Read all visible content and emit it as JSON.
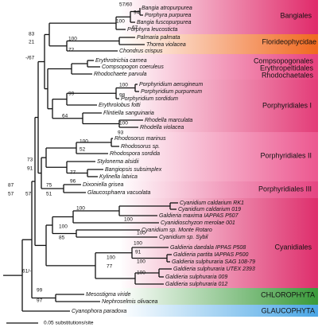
{
  "taxa": [
    "Bangia atropurpurea",
    "Porphyra purpurea",
    "Bangia fuscopurpurea",
    "Porphyra leucosticta",
    "Palmaria palmata",
    "Thorea violacea",
    "Chondrus crispus",
    "Erythrotrichia carnea",
    "Compsopogon coeruleus",
    "Rhodochaete parvula",
    "Porphyridium aerugineum",
    "Porphyridium purpureum",
    "Porphyridium sordidum",
    "Erythrolobus fotti",
    "Flintiella sanguinaria",
    "Rhodella marculata",
    "Rhodella violacea",
    "Rhodosorus marinus",
    "Rhodosorus sp.",
    "Rhodospora sordida",
    "Stylonema alsidii",
    "Bangiopsis subsimplex",
    "Kylinella latvica",
    "Dixoniella grisea",
    "Glaucosphaera vacuolata",
    "Cyanidium caldarium RK1",
    "Cyanidium caldarium 019",
    "Galdieria maxima IAPPAS P507",
    "Cyanidioschyzon merolae 001",
    "Cyanidium sp. Monte Rotaro",
    "Cyanidium sp. Sybil",
    "Galdieria daedala IPPAS P508",
    "Galdieria partita IAPPAS P500",
    "Galdieria sulphuraria SAG 108-79",
    "Galdieria sulphuraria UTEX 2393",
    "Galdieria sulphuraria 009",
    "Galdieria sulphuraria 012",
    "Mesostigma viride",
    "Nephroselmis olivacea",
    "Cyanophora paradoxa"
  ],
  "support": [
    "57/60",
    "94",
    "100",
    "67",
    "83",
    "21",
    "100",
    "72",
    "-/67",
    "100",
    "98",
    "99",
    "64",
    "100",
    "93",
    "100",
    "52",
    "73",
    "91",
    "77",
    "96",
    "87",
    "57",
    "75",
    "57",
    "51",
    "100",
    "100",
    "100",
    "85",
    "100",
    "100",
    "91",
    "100",
    "77",
    "100",
    "100",
    "61/-",
    "99",
    "97"
  ],
  "clades": [
    "Bangiales",
    "Florideophycidae",
    "Compsopogonales",
    "Erythropeltidales",
    "Rhodochaetales",
    "Porphyridiales I",
    "Porphyridiales II",
    "Porphyridiales III",
    "Cyanidiales",
    "CHLOROPHYTA",
    "GLAUCOPHYTA"
  ],
  "scale_bar": {
    "label": "0.05 substitutions/site"
  }
}
